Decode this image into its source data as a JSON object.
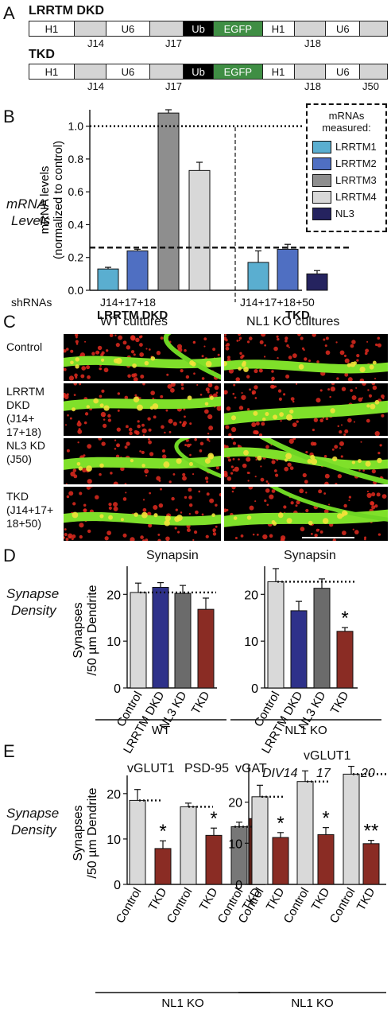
{
  "panels": {
    "A": "A",
    "B": "B",
    "C": "C",
    "D": "D",
    "E": "E"
  },
  "panel_a": {
    "construct1_title": "LRRTM DKD",
    "construct2_title": "TKD",
    "segments": {
      "h1": "H1",
      "u6": "U6",
      "ub": "Ub",
      "egfp": "EGFP"
    },
    "junctions": {
      "j14": "J14",
      "j17": "J17",
      "j18": "J18",
      "j50": "J50"
    }
  },
  "panel_b": {
    "side_label_1": "mRNA",
    "side_label_2": "Levels",
    "ylabel_1": "mRNA levels",
    "ylabel_2": "(normalized to control)",
    "shrna_label": "shRNAs",
    "group1_label": "J14+17+18",
    "group1_name": "LRRTM DKD",
    "group2_label": "J14+17+18+50",
    "group2_name": "TKD",
    "legend_title_1": "mRNAs",
    "legend_title_2": "measured:",
    "legend": [
      "LRRTM1",
      "LRRTM2",
      "LRRTM3",
      "LRRTM4",
      "NL3"
    ]
  },
  "panel_c": {
    "col1": "WT cultures",
    "col2": "NL1 KO cultures",
    "rows": [
      [
        "Control"
      ],
      [
        "LRRTM",
        "DKD",
        "(J14+",
        "17+18)"
      ],
      [
        "NL3 KD",
        "(J50)"
      ],
      [
        "TKD",
        "(J14+17+",
        "18+50)"
      ]
    ]
  },
  "panel_d": {
    "side_label_1": "Synapse",
    "side_label_2": "Density",
    "ylabel_1": "Synapses",
    "ylabel_2": "/50 µm Dendrite",
    "title_left": "Synapsin",
    "title_right": "Synapsin",
    "group_left": "WT",
    "group_right": "NL1 KO",
    "star": "*"
  },
  "panel_e": {
    "side_label_1": "Synapse",
    "side_label_2": "Density",
    "ylabel_1": "Synapses",
    "ylabel_2": "/50 µm Dendrite",
    "title_vglut1": "vGLUT1",
    "title_psd95": "PSD-95",
    "title_vgat": "vGAT",
    "title_right": "vGLUT1",
    "div14": "DIV14",
    "div17": "17",
    "div20": "20",
    "group_left": "NL1 KO",
    "group_right": "NL1 KO",
    "star": "*",
    "star2": "**"
  },
  "colors": {
    "lrrtm1": "#5aaed0",
    "lrrtm2": "#4f6fc2",
    "lrrtm3": "#8e8e8e",
    "lrrtm4": "#d8d8d8",
    "nl3": "#25235f",
    "control": "#d9d9d9",
    "dkd": "#2e318a",
    "nl3kd": "#6b6b6b",
    "tkd": "#8a2c24",
    "vgat_control": "#777777",
    "vgat_tkd": "#5c1e17",
    "egfp": "#3f8e44"
  },
  "chart_data": [
    {
      "id": "B",
      "type": "bar",
      "ylabel": "mRNA levels (normalized to control)",
      "ylim": [
        0,
        1.1
      ],
      "yticks": [
        0,
        0.2,
        0.4,
        0.6,
        0.8,
        1.0
      ],
      "reference_lines": [
        1.0,
        0.26
      ],
      "groups": [
        {
          "name": "LRRTM DKD",
          "shrna": "J14+17+18",
          "bars": [
            {
              "series": "LRRTM1",
              "value": 0.13,
              "err": 0.01
            },
            {
              "series": "LRRTM2",
              "value": 0.24,
              "err": 0.01
            },
            {
              "series": "LRRTM3",
              "value": 1.08,
              "err": 0.02
            },
            {
              "series": "LRRTM4",
              "value": 0.73,
              "err": 0.05
            }
          ]
        },
        {
          "name": "TKD",
          "shrna": "J14+17+18+50",
          "bars": [
            {
              "series": "LRRTM1",
              "value": 0.17,
              "err": 0.07
            },
            {
              "series": "LRRTM2",
              "value": 0.25,
              "err": 0.03
            },
            {
              "series": "NL3",
              "value": 0.1,
              "err": 0.02
            }
          ]
        }
      ]
    },
    {
      "id": "D-left",
      "type": "bar",
      "title": "Synapsin",
      "ylabel": "Synapses /50 µm Dendrite",
      "ylim": [
        0,
        26
      ],
      "yticks": [
        0,
        10,
        20
      ],
      "group": "WT",
      "categories": [
        "Control",
        "LRRTM DKD",
        "NL3 KD",
        "TKD"
      ],
      "values": [
        20.4,
        21.5,
        20.2,
        16.8
      ],
      "errors": [
        2.0,
        1.0,
        1.7,
        2.4
      ],
      "reference_line": 20.4
    },
    {
      "id": "D-right",
      "type": "bar",
      "title": "Synapsin",
      "ylim": [
        0,
        26
      ],
      "yticks": [
        0,
        10,
        20
      ],
      "group": "NL1 KO",
      "categories": [
        "Control",
        "LRRTM DKD",
        "NL3 KD",
        "TKD"
      ],
      "values": [
        22.7,
        16.5,
        21.3,
        12.1
      ],
      "errors": [
        2.8,
        2.0,
        2.0,
        0.8
      ],
      "significance": [
        "",
        "",
        "",
        "*"
      ],
      "reference_line": 22.7
    },
    {
      "id": "E-left",
      "type": "bar",
      "ylabel": "Synapses /50 µm Dendrite",
      "ylim": [
        0,
        24
      ],
      "yticks": [
        0,
        10,
        20
      ],
      "group": "NL1 KO",
      "categories": [
        "Control",
        "TKD",
        "Control",
        "TKD",
        "Control",
        "TKD"
      ],
      "markers": [
        "vGLUT1",
        "vGLUT1",
        "PSD-95",
        "PSD-95",
        "vGAT",
        "vGAT"
      ],
      "values": [
        18.5,
        7.9,
        17.1,
        10.8,
        12.7,
        14.5
      ],
      "errors": [
        2.4,
        1.7,
        0.8,
        1.6,
        1.0,
        1.8
      ],
      "significance": [
        "",
        "*",
        "",
        "*",
        "",
        ""
      ],
      "reference_lines": [
        18.5,
        17.1,
        12.7
      ]
    },
    {
      "id": "E-right",
      "type": "bar",
      "title": "vGLUT1",
      "ylim": [
        0,
        29
      ],
      "yticks": [
        0,
        10,
        20
      ],
      "group": "NL1 KO",
      "categories": [
        "Control",
        "TKD",
        "Control",
        "TKD",
        "Control",
        "TKD"
      ],
      "timepoints": [
        "DIV14",
        "DIV14",
        "17",
        "17",
        "20",
        "20"
      ],
      "values": [
        21.3,
        11.4,
        25.0,
        12.1,
        26.8,
        9.9
      ],
      "errors": [
        2.8,
        1.2,
        2.6,
        1.7,
        1.9,
        0.8
      ],
      "significance": [
        "",
        "*",
        "",
        "*",
        "",
        "**"
      ],
      "reference_lines": [
        21.3,
        25.0,
        26.8
      ]
    }
  ]
}
